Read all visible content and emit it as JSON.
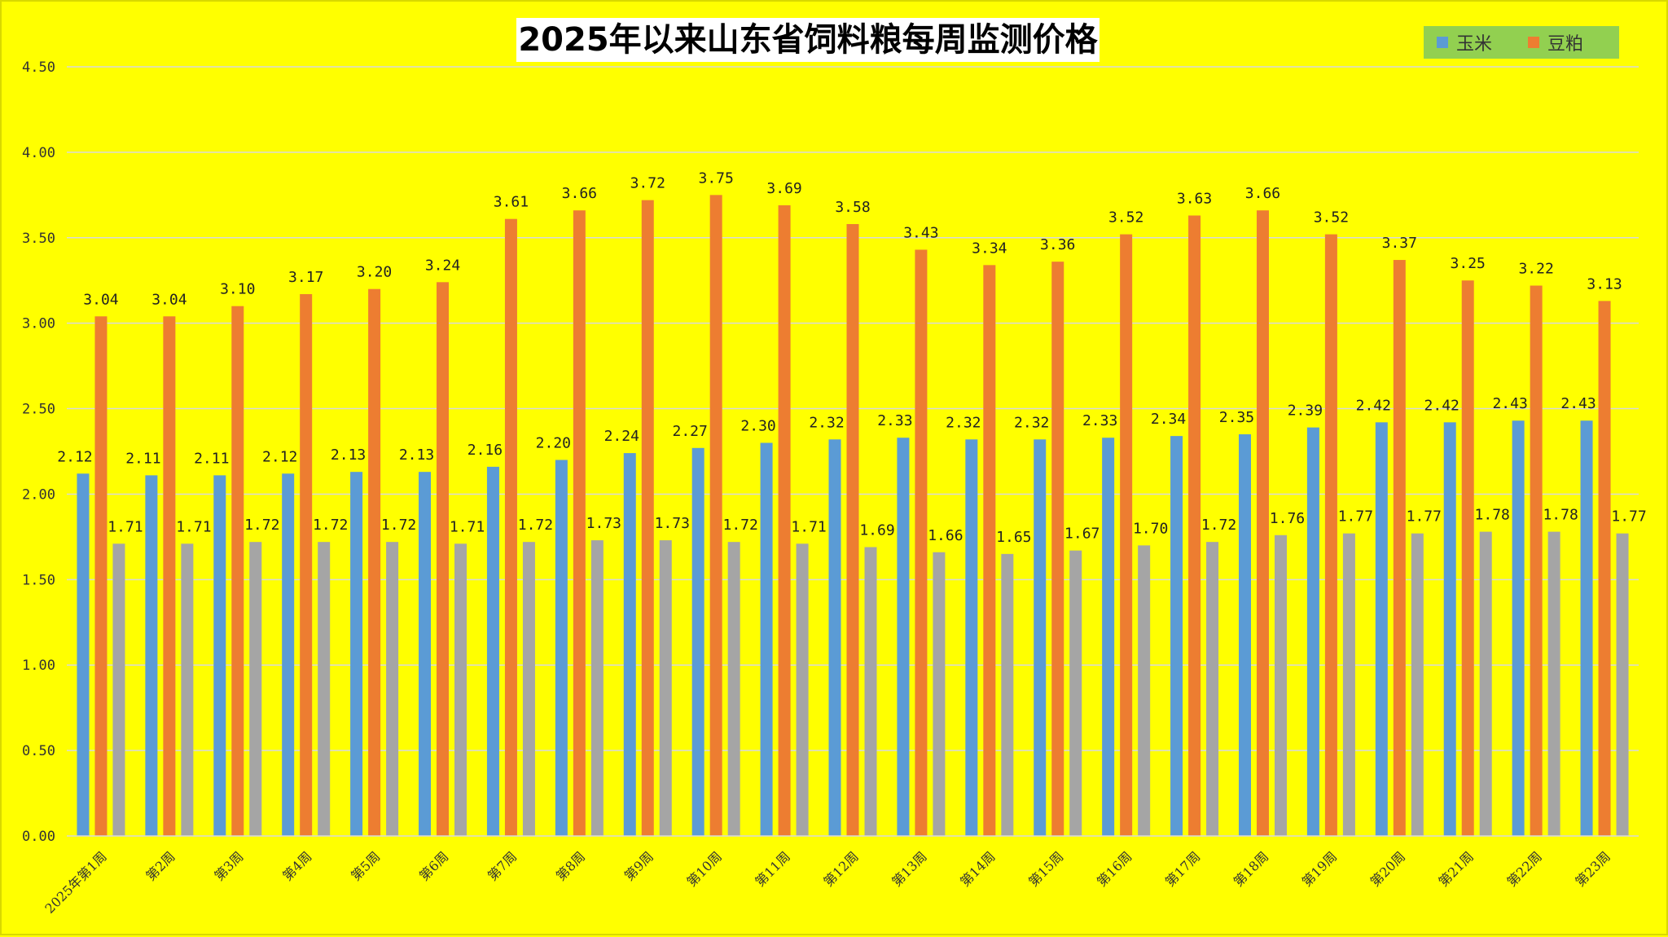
{
  "chart_data": {
    "type": "bar",
    "title": "2025年以来山东省饲料粮每周监测价格",
    "categories": [
      "2025年第1周",
      "第2周",
      "第3周",
      "第4周",
      "第5周",
      "第6周",
      "第7周",
      "第8周",
      "第9周",
      "第10周",
      "第11周",
      "第12周",
      "第13周",
      "第14周",
      "第15周",
      "第16周",
      "第17周",
      "第18周",
      "第19周",
      "第20周",
      "第21周",
      "第22周",
      "第23周"
    ],
    "series": [
      {
        "name": "玉米",
        "color": "#5b9bd5",
        "values": [
          2.12,
          2.11,
          2.11,
          2.12,
          2.13,
          2.13,
          2.16,
          2.2,
          2.24,
          2.27,
          2.3,
          2.32,
          2.33,
          2.32,
          2.32,
          2.33,
          2.34,
          2.35,
          2.39,
          2.42,
          2.42,
          2.43,
          2.43
        ]
      },
      {
        "name": "豆粕",
        "color": "#ed7d31",
        "values": [
          3.04,
          3.04,
          3.1,
          3.17,
          3.2,
          3.24,
          3.61,
          3.66,
          3.72,
          3.75,
          3.69,
          3.58,
          3.43,
          3.34,
          3.36,
          3.52,
          3.63,
          3.66,
          3.52,
          3.37,
          3.25,
          3.22,
          3.13
        ]
      },
      {
        "color": "#a5a5a5",
        "values": [
          1.71,
          1.71,
          1.72,
          1.72,
          1.72,
          1.71,
          1.72,
          1.73,
          1.73,
          1.72,
          1.71,
          1.69,
          1.66,
          1.65,
          1.67,
          1.7,
          1.72,
          1.76,
          1.77,
          1.77,
          1.78,
          1.78,
          1.77
        ]
      }
    ],
    "ylim": [
      0,
      4.5
    ],
    "yticks": [
      "0.00",
      "0.50",
      "1.00",
      "1.50",
      "2.00",
      "2.50",
      "3.00",
      "3.50",
      "4.00",
      "4.50"
    ],
    "grid": true,
    "legend": "top-right",
    "background": "#ffff00",
    "legend_background": "#92d050",
    "title_background": "#ffffff"
  }
}
